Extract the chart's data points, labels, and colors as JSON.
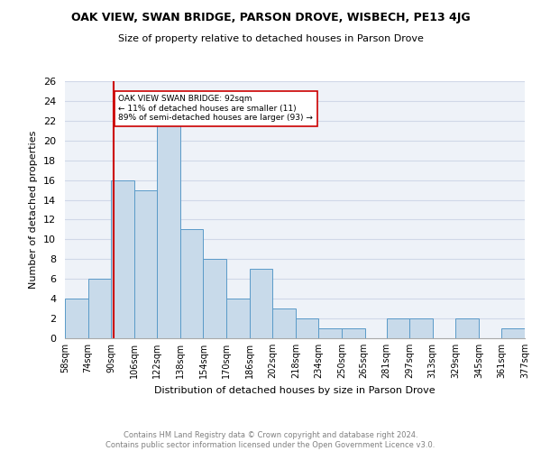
{
  "title": "OAK VIEW, SWAN BRIDGE, PARSON DROVE, WISBECH, PE13 4JG",
  "subtitle": "Size of property relative to detached houses in Parson Drove",
  "xlabel": "Distribution of detached houses by size in Parson Drove",
  "ylabel": "Number of detached properties",
  "footnote": "Contains HM Land Registry data © Crown copyright and database right 2024.\nContains public sector information licensed under the Open Government Licence v3.0.",
  "annotation_line1": "OAK VIEW SWAN BRIDGE: 92sqm",
  "annotation_line2": "← 11% of detached houses are smaller (11)",
  "annotation_line3": "89% of semi-detached houses are larger (93) →",
  "bar_color": "#c8daea",
  "bar_edge_color": "#5a9ac8",
  "ref_line_color": "#cc0000",
  "ref_line_x": 92,
  "annotation_box_edge": "#cc0000",
  "bins": [
    58,
    74,
    90,
    106,
    122,
    138,
    154,
    170,
    186,
    202,
    218,
    234,
    250,
    265,
    281,
    297,
    313,
    329,
    345,
    361,
    377
  ],
  "bin_labels": [
    "58sqm",
    "74sqm",
    "90sqm",
    "106sqm",
    "122sqm",
    "138sqm",
    "154sqm",
    "170sqm",
    "186sqm",
    "202sqm",
    "218sqm",
    "234sqm",
    "250sqm",
    "265sqm",
    "281sqm",
    "297sqm",
    "313sqm",
    "329sqm",
    "345sqm",
    "361sqm",
    "377sqm"
  ],
  "counts": [
    4,
    6,
    16,
    15,
    22,
    11,
    8,
    4,
    7,
    3,
    2,
    1,
    1,
    0,
    2,
    2,
    0,
    2,
    0,
    1
  ],
  "ylim": [
    0,
    26
  ],
  "yticks": [
    0,
    2,
    4,
    6,
    8,
    10,
    12,
    14,
    16,
    18,
    20,
    22,
    24,
    26
  ],
  "grid_color": "#d0d8e8",
  "background_color": "#eef2f8"
}
